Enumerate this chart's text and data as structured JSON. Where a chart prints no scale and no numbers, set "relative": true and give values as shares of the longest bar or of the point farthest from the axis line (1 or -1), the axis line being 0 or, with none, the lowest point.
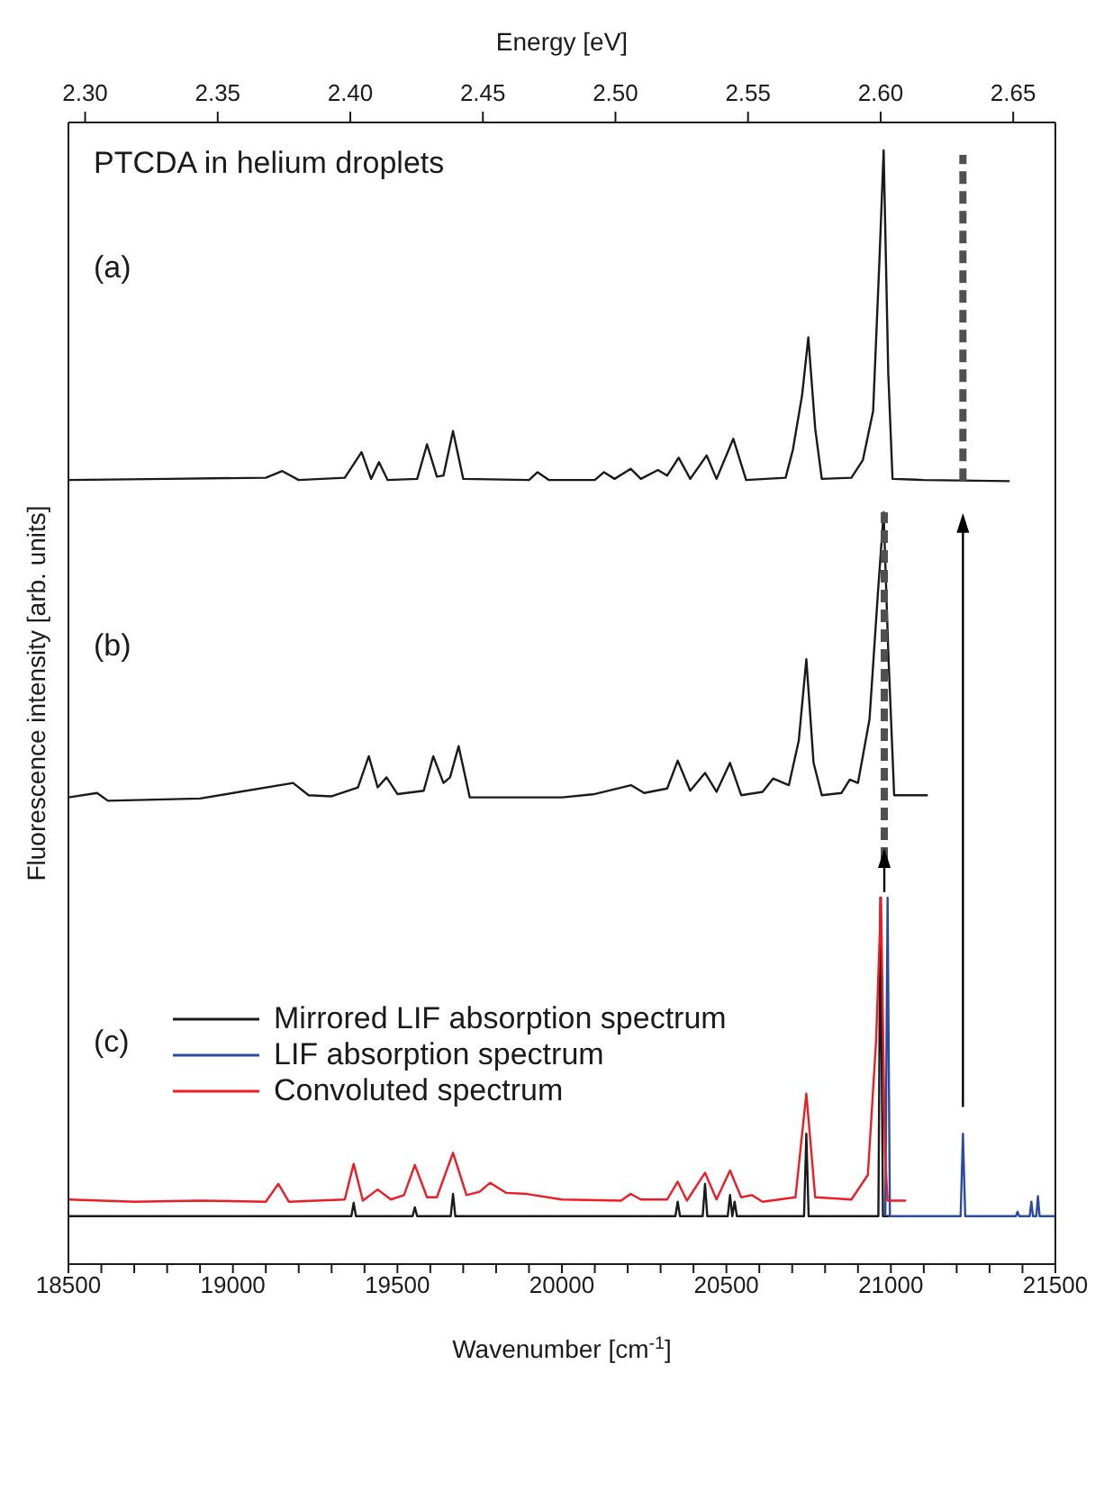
{
  "chart_data": {
    "type": "line",
    "relative": true,
    "xlabel": "Wavenumber [cm$^{-1}$]",
    "ylabel": "Fluorescence intensity  [arb. units]",
    "x2label": "Energy [eV]",
    "xlim": [
      18500,
      21500
    ],
    "xticks": [
      18500,
      {
        "value": 18600,
        "label": null
      },
      {
        "value": 18700,
        "label": null
      },
      {
        "value": 18800,
        "label": null
      },
      {
        "value": 18900,
        "label": null
      },
      19000,
      {
        "value": 19100,
        "label": null
      },
      {
        "value": 19200,
        "label": null
      },
      {
        "value": 19300,
        "label": null
      },
      {
        "value": 19400,
        "label": null
      },
      19500,
      {
        "value": 19600,
        "label": null
      },
      {
        "value": 19700,
        "label": null
      },
      {
        "value": 19800,
        "label": null
      },
      {
        "value": 19900,
        "label": null
      },
      20000,
      {
        "value": 20100,
        "label": null
      },
      {
        "value": 20200,
        "label": null
      },
      {
        "value": 20300,
        "label": null
      },
      {
        "value": 20400,
        "label": null
      },
      20500,
      {
        "value": 20600,
        "label": null
      },
      {
        "value": 20700,
        "label": null
      },
      {
        "value": 20800,
        "label": null
      },
      {
        "value": 20900,
        "label": null
      },
      21000,
      {
        "value": 21100,
        "label": null
      },
      {
        "value": 21200,
        "label": null
      },
      {
        "value": 21300,
        "label": null
      },
      {
        "value": 21400,
        "label": null
      },
      21500
    ],
    "x2lim": [
      2.2937,
      2.6659
    ],
    "x2ticks": [
      {
        "value": 2.3,
        "label": "2.30"
      },
      2.35,
      {
        "value": 2.4,
        "label": "2.40"
      },
      2.45,
      {
        "value": 2.5,
        "label": "2.50"
      },
      2.55,
      {
        "value": 2.6,
        "label": "2.60"
      },
      2.65
    ],
    "legend": "left",
    "grid": false,
    "marker": "none",
    "line_style": "solid",
    "annotations": [
      "PTCDA in helium droplets",
      "(a)",
      "(b)",
      "(c)"
    ],
    "series": [
      {
        "color": "#1a1a1a",
        "x": [
          18500,
          18800,
          19100,
          19150,
          19200,
          19340,
          19391,
          19420,
          19444,
          19470,
          19560,
          19590,
          19620,
          19640,
          19669,
          19700,
          19900,
          19926,
          19960,
          20100,
          20128,
          20160,
          20209,
          20240,
          20292,
          20320,
          20355,
          20390,
          20440,
          20470,
          20521,
          20560,
          20680,
          20702,
          20730,
          20749,
          20770,
          20790,
          20880,
          20915,
          20946,
          20965,
          20978,
          20992,
          21005,
          21100,
          21361
        ],
        "values": [
          0.704,
          0.705,
          0.706,
          0.712,
          0.704,
          0.706,
          0.729,
          0.705,
          0.72,
          0.704,
          0.705,
          0.736,
          0.707,
          0.708,
          0.748,
          0.705,
          0.704,
          0.711,
          0.704,
          0.704,
          0.711,
          0.705,
          0.714,
          0.705,
          0.713,
          0.708,
          0.724,
          0.705,
          0.726,
          0.705,
          0.741,
          0.704,
          0.706,
          0.731,
          0.78,
          0.832,
          0.75,
          0.705,
          0.706,
          0.722,
          0.766,
          0.9,
          1.0,
          0.8,
          0.705,
          0.704,
          0.703
        ]
      },
      {
        "color": "#1a1a1a",
        "x": [
          18500,
          18587,
          18620,
          18900,
          19183,
          19230,
          19300,
          19380,
          19413,
          19440,
          19467,
          19500,
          19580,
          19609,
          19640,
          19660,
          19686,
          19720,
          20000,
          20100,
          20210,
          20250,
          20320,
          20352,
          20390,
          20435,
          20470,
          20511,
          20545,
          20610,
          20642,
          20690,
          20720,
          20743,
          20765,
          20790,
          20850,
          20875,
          20900,
          20935,
          20960,
          20978,
          20992,
          21010,
          21112
        ],
        "values": [
          0.419,
          0.423,
          0.416,
          0.418,
          0.432,
          0.421,
          0.42,
          0.428,
          0.456,
          0.428,
          0.437,
          0.422,
          0.425,
          0.456,
          0.432,
          0.437,
          0.465,
          0.419,
          0.419,
          0.422,
          0.43,
          0.423,
          0.427,
          0.452,
          0.425,
          0.441,
          0.424,
          0.45,
          0.421,
          0.424,
          0.436,
          0.43,
          0.47,
          0.543,
          0.45,
          0.421,
          0.423,
          0.435,
          0.432,
          0.489,
          0.6,
          0.675,
          0.55,
          0.421,
          0.421
        ]
      },
      {
        "name": "Mirrored LIF absorption spectrum",
        "color": "#1a1a1a",
        "x": [
          18500,
          19360,
          19367,
          19374,
          19546,
          19553,
          19560,
          19662,
          19669,
          19676,
          20345,
          20352,
          20359,
          20428,
          20435,
          20442,
          20504,
          20511,
          20518,
          20525,
          20532,
          20736,
          20743,
          20750,
          20962,
          20968,
          20976,
          20995
        ],
        "values": [
          0.043,
          0.043,
          0.055,
          0.043,
          0.043,
          0.051,
          0.043,
          0.043,
          0.063,
          0.043,
          0.043,
          0.056,
          0.043,
          0.043,
          0.072,
          0.043,
          0.043,
          0.062,
          0.043,
          0.056,
          0.043,
          0.043,
          0.117,
          0.043,
          0.043,
          0.329,
          0.043,
          0.043
        ]
      },
      {
        "name": "LIF absorption spectrum",
        "color": "#2b4aa0",
        "x": [
          20983,
          20990,
          20997,
          21212,
          21219,
          21226,
          21380,
          21385,
          21390,
          21422,
          21427,
          21432,
          21442,
          21447,
          21452,
          21500
        ],
        "values": [
          0.043,
          0.329,
          0.043,
          0.043,
          0.117,
          0.043,
          0.043,
          0.047,
          0.043,
          0.043,
          0.056,
          0.043,
          0.043,
          0.061,
          0.043,
          0.043
        ]
      },
      {
        "name": "Convoluted spectrum",
        "color": "#ee1c24",
        "x": [
          18500,
          18700,
          18900,
          19100,
          19138,
          19170,
          19340,
          19367,
          19395,
          19440,
          19480,
          19520,
          19553,
          19590,
          19620,
          19669,
          19710,
          19750,
          19782,
          19830,
          19893,
          20000,
          20180,
          20209,
          20240,
          20320,
          20352,
          20380,
          20435,
          20470,
          20511,
          20545,
          20577,
          20610,
          20710,
          20743,
          20770,
          20880,
          20930,
          20955,
          20970,
          20982,
          20990,
          21046
        ],
        "values": [
          0.058,
          0.056,
          0.057,
          0.056,
          0.072,
          0.056,
          0.058,
          0.09,
          0.057,
          0.067,
          0.058,
          0.062,
          0.089,
          0.06,
          0.06,
          0.1,
          0.062,
          0.065,
          0.073,
          0.064,
          0.063,
          0.058,
          0.057,
          0.063,
          0.058,
          0.058,
          0.074,
          0.057,
          0.082,
          0.058,
          0.084,
          0.06,
          0.062,
          0.056,
          0.06,
          0.153,
          0.06,
          0.058,
          0.08,
          0.2,
          0.329,
          0.1,
          0.057,
          0.057
        ]
      },
      {
        "color": "#505050",
        "line_style": "dashed",
        "x": [
          21219,
          21219
        ],
        "values": [
          0.703,
          0.996
        ]
      },
      {
        "color": "#505050",
        "line_style": "dashed",
        "x": [
          20980,
          20980
        ],
        "values": [
          0.363,
          0.675
        ]
      },
      {
        "color": "#000000",
        "marker": "triangle",
        "x": [
          21219,
          21219
        ],
        "values": [
          0.141,
          0.668
        ]
      },
      {
        "color": "#000000",
        "marker": "triangle",
        "x": [
          20980,
          20980
        ],
        "values": [
          0.334,
          0.367
        ]
      }
    ]
  }
}
